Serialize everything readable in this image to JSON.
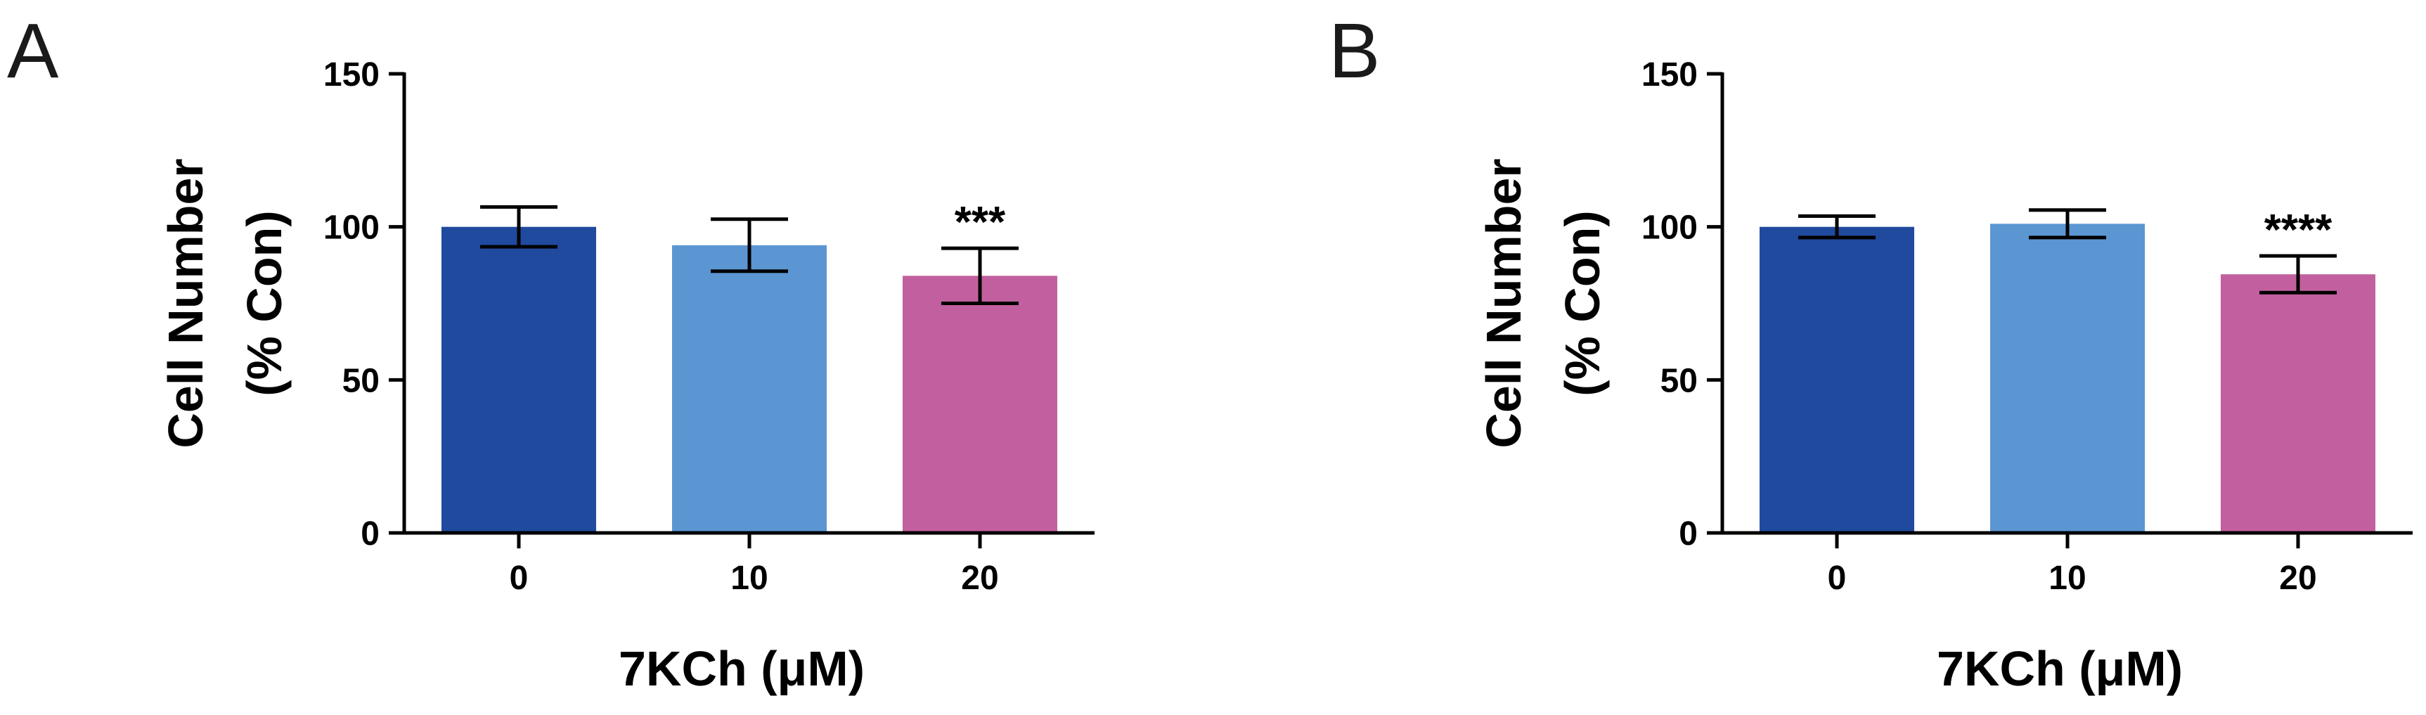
{
  "chart_data": [
    {
      "type": "bar",
      "panel": "A",
      "categories": [
        "0",
        "10",
        "20"
      ],
      "values": [
        100,
        94,
        84
      ],
      "errors": [
        6.5,
        8.5,
        9
      ],
      "annotations": [
        "",
        "",
        "***"
      ],
      "colors": [
        "#1f4a9e",
        "#5b96d2",
        "#c2609f"
      ],
      "xlabel": "7KCh (μM)",
      "ylabel_lines": [
        "Cell Number",
        "(% Con)"
      ],
      "ylim": [
        0,
        150
      ],
      "yticks": [
        0,
        50,
        100,
        150
      ]
    },
    {
      "type": "bar",
      "panel": "B",
      "categories": [
        "0",
        "10",
        "20"
      ],
      "values": [
        100,
        101,
        84.5
      ],
      "errors": [
        3.5,
        4.5,
        6
      ],
      "annotations": [
        "",
        "",
        "****"
      ],
      "colors": [
        "#1f4a9e",
        "#5b96d2",
        "#c2609f"
      ],
      "xlabel": "7KCh (μM)",
      "ylabel_lines": [
        "Cell Number",
        "(% Con)"
      ],
      "ylim": [
        0,
        150
      ],
      "yticks": [
        0,
        50,
        100,
        150
      ]
    }
  ]
}
